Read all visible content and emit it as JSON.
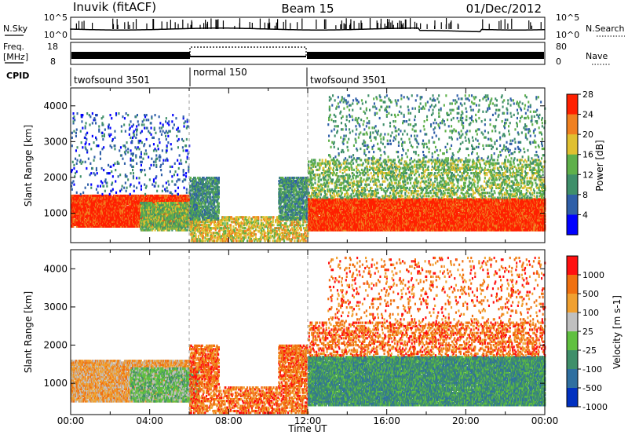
{
  "header": {
    "station": "Inuvik (fitACF)",
    "beam": "Beam 15",
    "date": "01/Dec/2012"
  },
  "nsky": {
    "label": "N.Sky",
    "right_label": "N.Search",
    "y_top_tick": "10^5",
    "y_bottom_tick": "10^0"
  },
  "freq": {
    "label_line1": "Freq.",
    "label_line2": "[MHz]",
    "left_ticks": [
      "18",
      "8"
    ],
    "right_ticks": [
      "80",
      "0"
    ],
    "right_label": "Nave"
  },
  "cpid": {
    "label": "CPID",
    "segments": [
      {
        "name": "twofsound 3501",
        "start": 0,
        "end": 6
      },
      {
        "name": "normal 150",
        "start": 6,
        "end": 12
      },
      {
        "name": "twofsound 3501",
        "start": 12,
        "end": 24
      }
    ]
  },
  "chart_data": [
    {
      "type": "heatmap",
      "title": "Power",
      "ylabel": "Slant Range [km]",
      "xlabel": "Time UT",
      "x_range_hours": [
        0,
        24
      ],
      "y_range_km": [
        180,
        4500
      ],
      "y_ticks": [
        1000,
        2000,
        3000,
        4000
      ],
      "x_ticks": [
        "00:00",
        "04:00",
        "08:00",
        "12:00",
        "16:00",
        "20:00",
        "00:00"
      ],
      "colorbar": {
        "label": "Power [dB]",
        "ticks": [
          "4",
          "8",
          "12",
          "16",
          "20",
          "24",
          "28"
        ],
        "colors": [
          "#0000ff",
          "#2f5fa8",
          "#3f8f6a",
          "#5fb04a",
          "#e0c030",
          "#f08020",
          "#ff2000"
        ]
      },
      "echo_bands": [
        {
          "t0": 0,
          "t1": 6,
          "r0": 600,
          "r1": 1500,
          "level": 6,
          "density": 0.85
        },
        {
          "t0": 3.5,
          "t1": 6.5,
          "r0": 500,
          "r1": 1300,
          "level": 3,
          "density": 0.6
        },
        {
          "t0": 6,
          "t1": 12,
          "r0": 200,
          "r1": 900,
          "level": 4,
          "density": 0.35
        },
        {
          "t0": 6,
          "t1": 7.5,
          "r0": 800,
          "r1": 2000,
          "level": 2,
          "density": 0.5
        },
        {
          "t0": 10.5,
          "t1": 12,
          "r0": 800,
          "r1": 2000,
          "level": 2,
          "density": 0.5
        },
        {
          "t0": 12,
          "t1": 24,
          "r0": 500,
          "r1": 1400,
          "level": 6,
          "density": 0.9
        },
        {
          "t0": 12,
          "t1": 24,
          "r0": 1400,
          "r1": 2500,
          "level": 3,
          "density": 0.25
        },
        {
          "t0": 13,
          "t1": 24,
          "r0": 2500,
          "r1": 4300,
          "level": 2,
          "density": 0.06
        },
        {
          "t0": 0,
          "t1": 6,
          "r0": 1500,
          "r1": 3800,
          "level": 1,
          "density": 0.05
        }
      ]
    },
    {
      "type": "heatmap",
      "title": "Velocity",
      "ylabel": "Slant Range [km]",
      "xlabel": "Time UT",
      "x_range_hours": [
        0,
        24
      ],
      "y_range_km": [
        180,
        4500
      ],
      "y_ticks": [
        1000,
        2000,
        3000,
        4000
      ],
      "x_ticks": [
        "00:00",
        "04:00",
        "08:00",
        "12:00",
        "16:00",
        "20:00",
        "00:00"
      ],
      "colorbar": {
        "label": "Velocity [m s-1]",
        "ticks": [
          "1000",
          "500",
          "100",
          "25",
          "-25",
          "-100",
          "-500",
          "-1000"
        ],
        "colors": [
          "#0030c0",
          "#2f6fa0",
          "#3f8f6a",
          "#60c040",
          "#c0c0c0",
          "#f0a030",
          "#f07010",
          "#ff1010"
        ]
      },
      "echo_bands": [
        {
          "t0": 0,
          "t1": 6,
          "r0": 500,
          "r1": 1600,
          "level": 5,
          "density": 0.8
        },
        {
          "t0": 3,
          "t1": 6.5,
          "r0": 500,
          "r1": 1400,
          "level": 3,
          "density": 0.6
        },
        {
          "t0": 6,
          "t1": 12,
          "r0": 200,
          "r1": 900,
          "level": 6,
          "density": 0.35
        },
        {
          "t0": 6,
          "t1": 7.5,
          "r0": 900,
          "r1": 2000,
          "level": 6,
          "density": 0.5
        },
        {
          "t0": 10.5,
          "t1": 12,
          "r0": 900,
          "r1": 2000,
          "level": 6,
          "density": 0.5
        },
        {
          "t0": 12,
          "t1": 24,
          "r0": 400,
          "r1": 1700,
          "level": 2,
          "density": 0.85
        },
        {
          "t0": 12,
          "t1": 24,
          "r0": 1700,
          "r1": 2600,
          "level": 6,
          "density": 0.25
        },
        {
          "t0": 13,
          "t1": 24,
          "r0": 2600,
          "r1": 4300,
          "level": 6,
          "density": 0.06
        }
      ]
    }
  ]
}
